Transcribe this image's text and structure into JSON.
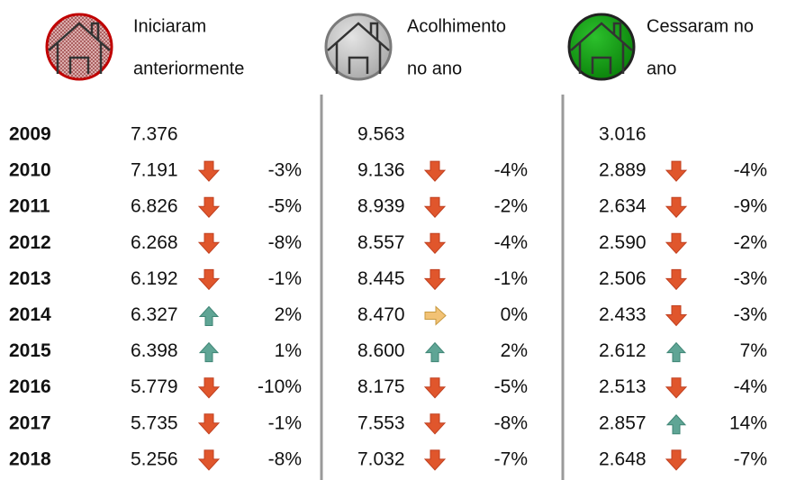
{
  "columns": [
    {
      "title": [
        "Iniciaram",
        "anteriormente"
      ]
    },
    {
      "title": [
        "Acolhimento",
        "no ano"
      ]
    },
    {
      "title": [
        "Cessaram no",
        "ano"
      ]
    }
  ],
  "rows": [
    {
      "year": "2009",
      "cells": [
        {
          "value": "7.376"
        },
        {
          "value": "9.563"
        },
        {
          "value": "3.016"
        }
      ]
    },
    {
      "year": "2010",
      "cells": [
        {
          "value": "7.191",
          "change": "-3%"
        },
        {
          "value": "9.136",
          "change": "-4%"
        },
        {
          "value": "2.889",
          "change": "-4%"
        }
      ]
    },
    {
      "year": "2011",
      "cells": [
        {
          "value": "6.826",
          "change": "-5%"
        },
        {
          "value": "8.939",
          "change": "-2%"
        },
        {
          "value": "2.634",
          "change": "-9%"
        }
      ]
    },
    {
      "year": "2012",
      "cells": [
        {
          "value": "6.268",
          "change": "-8%"
        },
        {
          "value": "8.557",
          "change": "-4%"
        },
        {
          "value": "2.590",
          "change": "-2%"
        }
      ]
    },
    {
      "year": "2013",
      "cells": [
        {
          "value": "6.192",
          "change": "-1%"
        },
        {
          "value": "8.445",
          "change": "-1%"
        },
        {
          "value": "2.506",
          "change": "-3%"
        }
      ]
    },
    {
      "year": "2014",
      "cells": [
        {
          "value": "6.327",
          "change": "2%"
        },
        {
          "value": "8.470",
          "change": "0%"
        },
        {
          "value": "2.433",
          "change": "-3%"
        }
      ]
    },
    {
      "year": "2015",
      "cells": [
        {
          "value": "6.398",
          "change": "1%"
        },
        {
          "value": "8.600",
          "change": "2%"
        },
        {
          "value": "2.612",
          "change": "7%"
        }
      ]
    },
    {
      "year": "2016",
      "cells": [
        {
          "value": "5.779",
          "change": "-10%"
        },
        {
          "value": "8.175",
          "change": "-5%"
        },
        {
          "value": "2.513",
          "change": "-4%"
        }
      ]
    },
    {
      "year": "2017",
      "cells": [
        {
          "value": "5.735",
          "change": "-1%"
        },
        {
          "value": "7.553",
          "change": "-8%"
        },
        {
          "value": "2.857",
          "change": "14%"
        }
      ]
    },
    {
      "year": "2018",
      "cells": [
        {
          "value": "5.256",
          "change": "-8%"
        },
        {
          "value": "7.032",
          "change": "-7%"
        },
        {
          "value": "2.648",
          "change": "-7%"
        }
      ]
    }
  ]
}
